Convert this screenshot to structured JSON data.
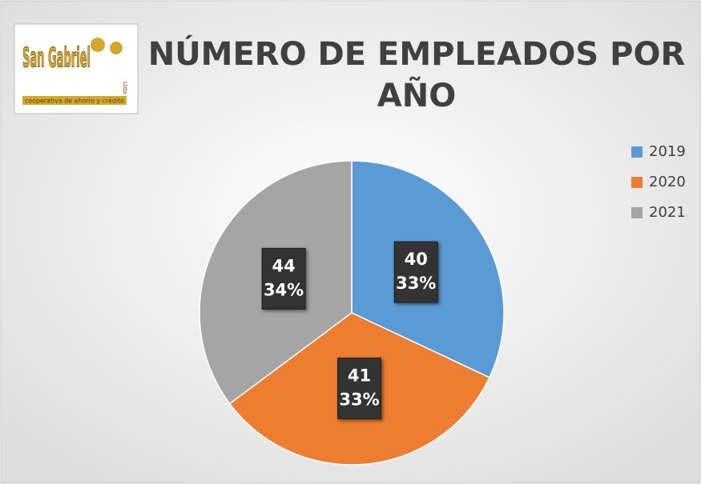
{
  "logo": {
    "name": "San Gabriel",
    "suffix": "Ltda.",
    "tagline": "cooperativa de ahorro y crédito"
  },
  "chart_data": {
    "type": "pie",
    "title": "NÚMERO DE EMPLEADOS POR AÑO",
    "categories": [
      "2019",
      "2020",
      "2021"
    ],
    "values": [
      40,
      41,
      44
    ],
    "percentages": [
      33,
      33,
      34
    ],
    "percentage_labels": [
      "33%",
      "33%",
      "34%"
    ],
    "colors": [
      "#5b9bd5",
      "#ed7d31",
      "#a5a5a5"
    ],
    "legend": "right"
  }
}
